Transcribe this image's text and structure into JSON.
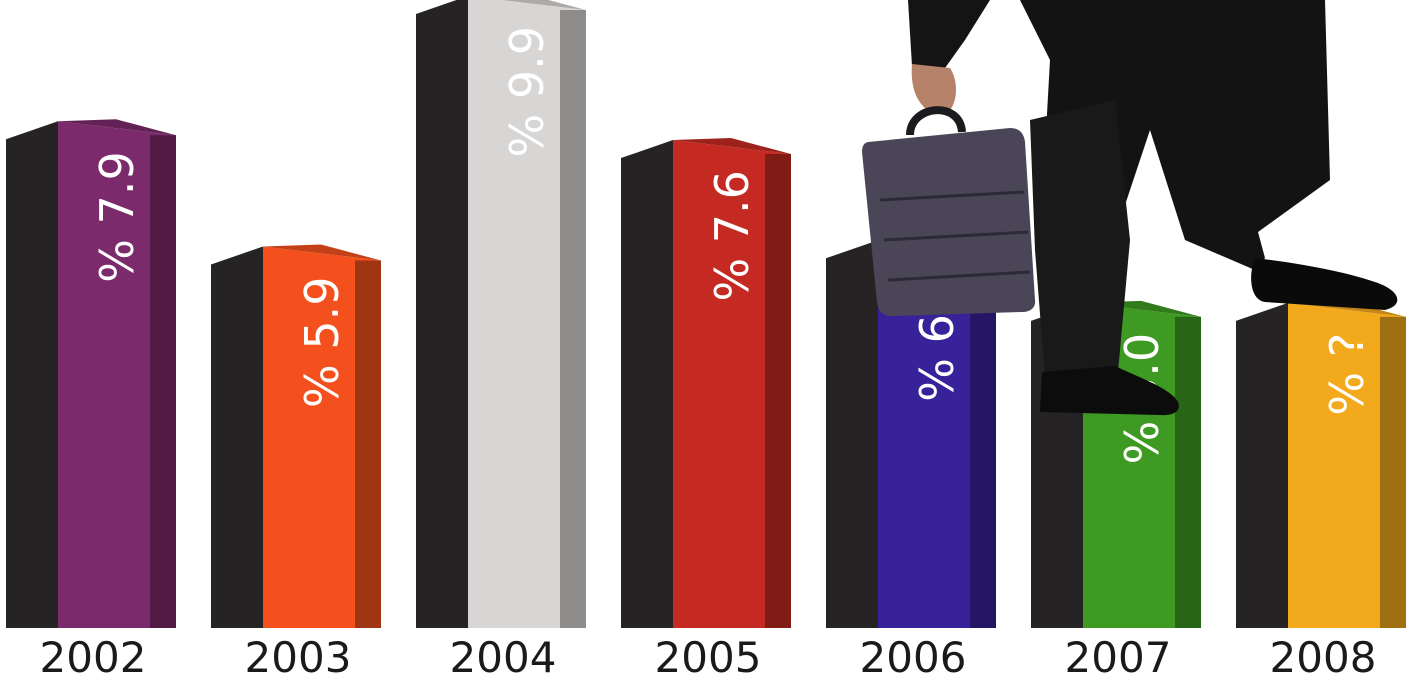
{
  "chart_data": {
    "type": "bar",
    "categories": [
      "2002",
      "2003",
      "2004",
      "2005",
      "2006",
      "2007",
      "2008"
    ],
    "values": [
      7.9,
      5.9,
      9.9,
      7.6,
      6.0,
      5.0,
      null
    ],
    "data_labels": [
      "% 7.9",
      "% 5.9",
      "% 9.9",
      "% 7.6",
      "% 6.0",
      "% 5.0",
      "% ?"
    ],
    "colors": [
      "#7B2A6B",
      "#F4501E",
      "#D8D6D5",
      "#C42A22",
      "#38229A",
      "#3F9A23",
      "#F2A91C"
    ],
    "dark_face_color": "#252323",
    "y_axis_visible": false,
    "grid": false,
    "legend": "none",
    "decoration": "businessman-with-briefcase-stepping-up-bars"
  }
}
